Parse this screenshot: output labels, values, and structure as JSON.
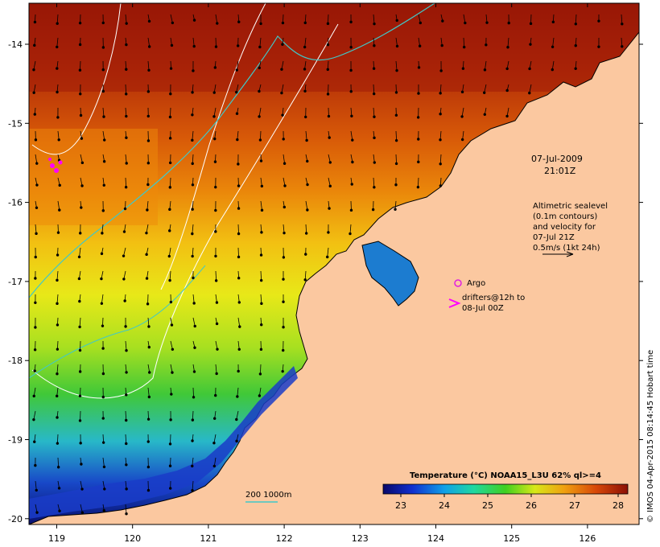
{
  "map": {
    "lon_ticks": [
      "119",
      "120",
      "121",
      "122",
      "123",
      "124",
      "125",
      "126"
    ],
    "lat_ticks": [
      "-14",
      "-15",
      "-16",
      "-17",
      "-18",
      "-19",
      "-20"
    ],
    "colors": {
      "land": "#fbc8a0",
      "warm": "#9c1a08",
      "orange": "#e8700a",
      "yellow": "#f0e818",
      "green": "#38c838",
      "cyan": "#20b8d8",
      "blue": "#1038c8",
      "navy": "#081070",
      "isobath_200": "#40c8c8",
      "sealevel_contour": "#ffffff",
      "argo": "#e020e0",
      "drifter": "#ff00ff"
    }
  },
  "annotations": {
    "date": "07-Jul-2009",
    "time": "21:01Z",
    "altimetry_lines": [
      "Altimetric sealevel",
      "(0.1m contours)",
      "and velocity for",
      "07-Jul 21Z",
      "0.5m/s (1kt 24h)"
    ],
    "argo_label": "Argo",
    "drifter_lines": [
      "drifters@12h to",
      "08-Jul 00Z"
    ],
    "isobath_label": "200  1000m"
  },
  "colorbar": {
    "title": "Temperature (°C) NOAA15_L3U 62% ql>=4",
    "ticks": [
      "23",
      "24",
      "25",
      "26",
      "27",
      "28"
    ]
  },
  "credit": "© IMOS 04-Apr-2015 08:14:45 Hobart time"
}
